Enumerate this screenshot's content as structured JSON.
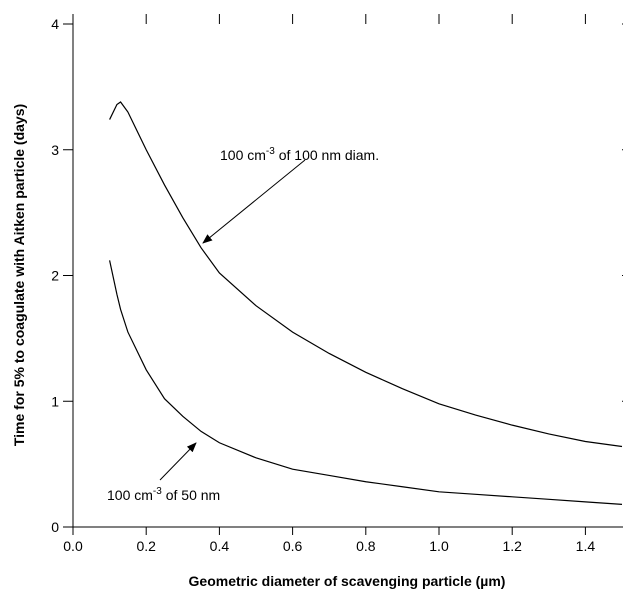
{
  "chart_data": {
    "type": "line",
    "x_label": "Geometric diameter of scavenging particle (µm)",
    "y_label": "Time for 5% to coagulate with Aitken particle (days)",
    "x": [
      0.1,
      0.12,
      0.13,
      0.15,
      0.2,
      0.25,
      0.3,
      0.35,
      0.4,
      0.5,
      0.6,
      0.7,
      0.8,
      0.9,
      1.0,
      1.1,
      1.2,
      1.3,
      1.4,
      1.5
    ],
    "series": [
      {
        "color": "#000000",
        "values": [
          3.24,
          3.36,
          3.38,
          3.3,
          3.0,
          2.72,
          2.46,
          2.22,
          2.02,
          1.76,
          1.55,
          1.38,
          1.23,
          1.1,
          0.98,
          0.89,
          0.81,
          0.74,
          0.68,
          0.64
        ]
      },
      {
        "color": "#000000",
        "values": [
          2.12,
          1.85,
          1.73,
          1.55,
          1.25,
          1.02,
          0.88,
          0.76,
          0.67,
          0.55,
          0.46,
          0.41,
          0.36,
          0.32,
          0.28,
          0.26,
          0.24,
          0.22,
          0.2,
          0.18
        ]
      }
    ],
    "xlim": [
      0,
      1.5
    ],
    "ylim": [
      0,
      4
    ],
    "xticks": [
      {
        "value": 0,
        "label": "0.0"
      },
      0.2,
      0.4,
      0.6,
      0.8,
      {
        "value": 1,
        "label": "1.0"
      },
      1.2,
      1.4
    ],
    "yticks": [
      0,
      1,
      2,
      3,
      4
    ],
    "annotations": [
      {
        "before": "100 cm",
        "sup": "-3",
        "after": " of 100 nm diam."
      },
      {
        "before": "100 cm",
        "sup": "-3",
        "after": " of 50 nm"
      }
    ]
  }
}
